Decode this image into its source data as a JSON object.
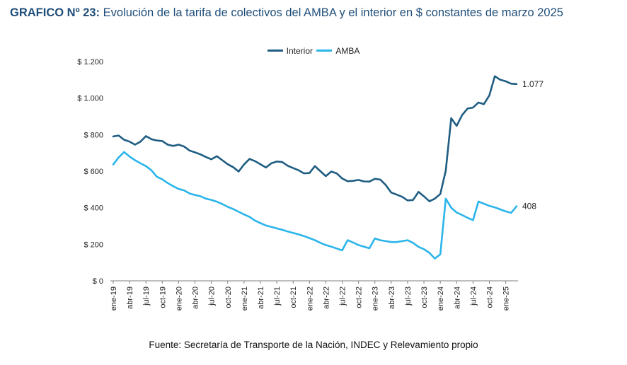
{
  "title_prefix": "GRAFICO Nº 23:",
  "title_text": "Evolución de la tarifa de colectivos del AMBA y el interior en $ constantes de marzo 2025",
  "source": "Fuente: Secretaría de Transporte de la Nación, INDEC y Relevamiento propio",
  "colors": {
    "interior": "#1f5d82",
    "amba": "#2bb5ea",
    "title": "#1f4e79"
  },
  "chart_data": {
    "type": "line",
    "ylim": [
      0,
      1200
    ],
    "y_ticks": [
      0,
      200,
      400,
      600,
      800,
      1000,
      1200
    ],
    "y_tick_labels": [
      "$ 0",
      "$ 200",
      "$ 400",
      "$ 600",
      "$ 800",
      "$ 1.000",
      "$ 1.200"
    ],
    "x_tick_labels": [
      "ene-19",
      "abr-19",
      "jul-19",
      "oct-19",
      "ene-20",
      "abr-20",
      "jul-20",
      "oct-20",
      "ene-21",
      "abr-21",
      "jul-21",
      "oct-21",
      "ene-22",
      "abr-22",
      "jul-22",
      "oct-22",
      "ene-23",
      "abr-23",
      "jul-23",
      "oct-23",
      "ene-24",
      "abr-24",
      "jul-24",
      "oct-24",
      "ene-25"
    ],
    "series": [
      {
        "name": "Interior",
        "end_label": "1.077",
        "values": [
          790,
          795,
          772,
          762,
          745,
          762,
          792,
          775,
          768,
          765,
          745,
          738,
          745,
          735,
          713,
          703,
          692,
          678,
          665,
          682,
          660,
          638,
          622,
          598,
          637,
          667,
          655,
          638,
          620,
          643,
          653,
          650,
          630,
          617,
          605,
          588,
          590,
          628,
          600,
          573,
          598,
          588,
          560,
          545,
          547,
          552,
          544,
          543,
          558,
          554,
          524,
          483,
          472,
          460,
          440,
          442,
          487,
          462,
          435,
          450,
          475,
          603,
          890,
          848,
          907,
          943,
          948,
          976,
          967,
          1015,
          1120,
          1100,
          1092,
          1079,
          1077
        ]
      },
      {
        "name": "AMBA",
        "end_label": "408",
        "values": [
          637,
          675,
          705,
          680,
          660,
          643,
          628,
          605,
          570,
          555,
          535,
          518,
          503,
          495,
          478,
          470,
          463,
          450,
          443,
          433,
          420,
          405,
          393,
          378,
          363,
          350,
          330,
          316,
          303,
          295,
          287,
          279,
          270,
          262,
          254,
          245,
          234,
          222,
          208,
          196,
          187,
          177,
          167,
          222,
          210,
          196,
          187,
          178,
          232,
          222,
          217,
          212,
          212,
          217,
          222,
          208,
          186,
          173,
          153,
          122,
          145,
          450,
          400,
          374,
          360,
          345,
          332,
          434,
          422,
          410,
          402,
          391,
          380,
          372,
          408
        ]
      }
    ]
  }
}
